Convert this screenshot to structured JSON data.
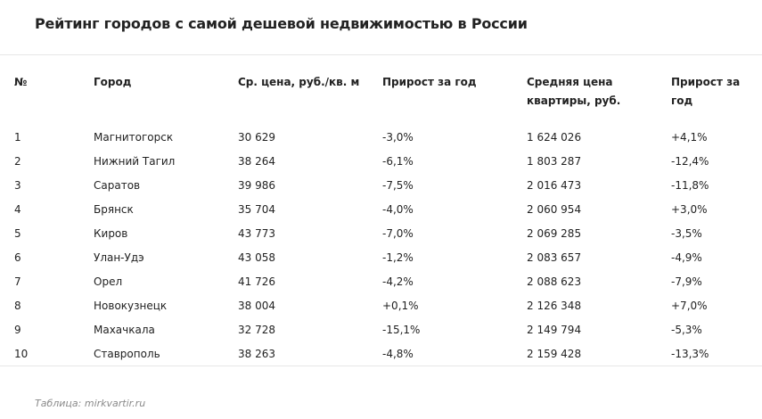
{
  "title": "Рейтинг городов с самой дешевой недвижимостью в России",
  "table": {
    "headers": {
      "num": "№",
      "city": "Город",
      "price_sqm": "Ср. цена, руб./кв. м",
      "growth_sqm": "Прирост за год",
      "avg_price_line1": "Средняя цена",
      "avg_price_line2": "квартиры, руб.",
      "growth_avg": "Прирост за год"
    },
    "rows": [
      {
        "num": "1",
        "city": "Магнитогорск",
        "price_sqm": "30 629",
        "growth_sqm": "-3,0%",
        "avg_price": "1 624 026",
        "growth_avg": "+4,1%"
      },
      {
        "num": "2",
        "city": "Нижний Тагил",
        "price_sqm": "38 264",
        "growth_sqm": "-6,1%",
        "avg_price": "1 803 287",
        "growth_avg": "-12,4%"
      },
      {
        "num": "3",
        "city": "Саратов",
        "price_sqm": "39 986",
        "growth_sqm": "-7,5%",
        "avg_price": "2 016 473",
        "growth_avg": "-11,8%"
      },
      {
        "num": "4",
        "city": "Брянск",
        "price_sqm": "35 704",
        "growth_sqm": "-4,0%",
        "avg_price": "2 060 954",
        "growth_avg": "+3,0%"
      },
      {
        "num": "5",
        "city": "Киров",
        "price_sqm": "43 773",
        "growth_sqm": "-7,0%",
        "avg_price": "2 069 285",
        "growth_avg": "-3,5%"
      },
      {
        "num": "6",
        "city": "Улан-Удэ",
        "price_sqm": "43 058",
        "growth_sqm": "-1,2%",
        "avg_price": "2 083 657",
        "growth_avg": "-4,9%"
      },
      {
        "num": "7",
        "city": "Орел",
        "price_sqm": "41 726",
        "growth_sqm": "-4,2%",
        "avg_price": "2 088 623",
        "growth_avg": "-7,9%"
      },
      {
        "num": "8",
        "city": "Новокузнецк",
        "price_sqm": "38 004",
        "growth_sqm": "+0,1%",
        "avg_price": "2 126 348",
        "growth_avg": "+7,0%"
      },
      {
        "num": "9",
        "city": "Махачкала",
        "price_sqm": "32 728",
        "growth_sqm": "-15,1%",
        "avg_price": "2 149 794",
        "growth_avg": "-5,3%"
      },
      {
        "num": "10",
        "city": "Ставрополь",
        "price_sqm": "38 263",
        "growth_sqm": "-4,8%",
        "avg_price": "2 159 428",
        "growth_avg": "-13,3%"
      }
    ]
  },
  "source": "Таблица: mirkvartir.ru"
}
